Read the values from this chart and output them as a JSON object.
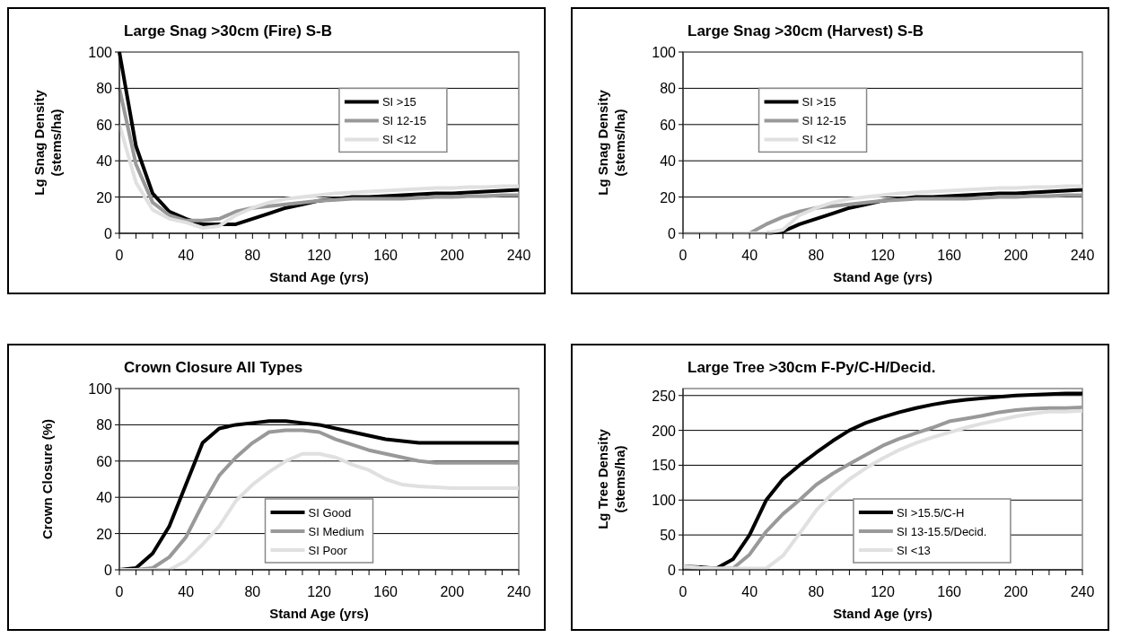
{
  "chart_data": [
    {
      "type": "line",
      "title": "Large Snag >30cm (Fire)  S-B",
      "xlabel": "Stand Age (yrs)",
      "ylabel": "Lg Snag Density (stems/ha)",
      "x": [
        0,
        10,
        20,
        30,
        40,
        50,
        60,
        70,
        80,
        90,
        100,
        110,
        120,
        130,
        140,
        150,
        160,
        170,
        180,
        190,
        200,
        210,
        220,
        230,
        240
      ],
      "xlim": [
        0,
        240
      ],
      "xticks": [
        0,
        {
          "value": 10,
          "label": null
        },
        {
          "value": 20,
          "label": null
        },
        {
          "value": 30,
          "label": null
        },
        40,
        {
          "value": 50,
          "label": null
        },
        {
          "value": 60,
          "label": null
        },
        {
          "value": 70,
          "label": null
        },
        80,
        {
          "value": 90,
          "label": null
        },
        {
          "value": 100,
          "label": null
        },
        {
          "value": 110,
          "label": null
        },
        120,
        {
          "value": 130,
          "label": null
        },
        {
          "value": 140,
          "label": null
        },
        {
          "value": 150,
          "label": null
        },
        160,
        {
          "value": 170,
          "label": null
        },
        {
          "value": 180,
          "label": null
        },
        {
          "value": 190,
          "label": null
        },
        200,
        {
          "value": 210,
          "label": null
        },
        {
          "value": 220,
          "label": null
        },
        {
          "value": 230,
          "label": null
        },
        240
      ],
      "ylim": [
        0,
        100
      ],
      "yticks": [
        0,
        20,
        40,
        60,
        80,
        100
      ],
      "grid": "y",
      "legend": "top right",
      "line_style": "solid",
      "series": [
        {
          "name": "SI >15",
          "color": "#000000",
          "values": [
            100,
            48,
            22,
            12,
            8,
            5,
            5,
            5,
            8,
            11,
            14,
            16,
            18,
            19,
            20,
            20,
            20.5,
            21,
            21.5,
            22,
            22,
            22.5,
            23,
            23.5,
            24
          ]
        },
        {
          "name": "SI 12-15",
          "color": "#999999",
          "values": [
            80,
            38,
            17,
            10,
            7,
            7,
            8,
            12,
            14,
            15,
            16,
            17,
            18,
            18.5,
            19,
            19,
            19,
            19,
            19.5,
            20,
            20,
            20.5,
            20.5,
            21,
            21
          ]
        },
        {
          "name": "SI <12",
          "color": "#e0e0e0",
          "values": [
            60,
            28,
            13,
            8,
            6,
            3,
            4,
            10,
            14,
            17,
            19,
            20,
            21,
            22,
            22.5,
            23,
            23.5,
            24,
            24.5,
            25,
            25,
            25.5,
            25.5,
            26,
            26
          ]
        }
      ]
    },
    {
      "type": "line",
      "title": "Large Snag >30cm (Harvest)  S-B",
      "xlabel": "Stand Age (yrs)",
      "ylabel": "Lg Snag Density (stems/ha)",
      "x": [
        0,
        10,
        20,
        30,
        40,
        50,
        60,
        70,
        80,
        90,
        100,
        110,
        120,
        130,
        140,
        150,
        160,
        170,
        180,
        190,
        200,
        210,
        220,
        230,
        240
      ],
      "xlim": [
        0,
        240
      ],
      "xticks": [
        0,
        {
          "value": 10,
          "label": null
        },
        {
          "value": 20,
          "label": null
        },
        {
          "value": 30,
          "label": null
        },
        40,
        {
          "value": 50,
          "label": null
        },
        {
          "value": 60,
          "label": null
        },
        {
          "value": 70,
          "label": null
        },
        80,
        {
          "value": 90,
          "label": null
        },
        {
          "value": 100,
          "label": null
        },
        {
          "value": 110,
          "label": null
        },
        120,
        {
          "value": 130,
          "label": null
        },
        {
          "value": 140,
          "label": null
        },
        {
          "value": 150,
          "label": null
        },
        160,
        {
          "value": 170,
          "label": null
        },
        {
          "value": 180,
          "label": null
        },
        {
          "value": 190,
          "label": null
        },
        200,
        {
          "value": 210,
          "label": null
        },
        {
          "value": 220,
          "label": null
        },
        {
          "value": 230,
          "label": null
        },
        240
      ],
      "ylim": [
        0,
        100
      ],
      "yticks": [
        0,
        20,
        40,
        60,
        80,
        100
      ],
      "grid": "y",
      "legend": "top left",
      "line_style": "solid",
      "series": [
        {
          "name": "SI >15",
          "color": "#000000",
          "values": [
            0,
            0,
            0,
            0,
            0,
            0,
            1,
            5,
            8,
            11,
            14,
            16,
            18,
            19,
            20,
            20,
            20.5,
            21,
            21.5,
            22,
            22,
            22.5,
            23,
            23.5,
            24
          ]
        },
        {
          "name": "SI 12-15",
          "color": "#999999",
          "values": [
            0,
            0,
            0,
            0,
            0,
            5,
            9,
            12,
            14,
            15,
            16,
            17,
            18,
            18.5,
            19,
            19,
            19,
            19,
            19.5,
            20,
            20,
            20.5,
            20.5,
            21,
            21
          ]
        },
        {
          "name": "SI <12",
          "color": "#e0e0e0",
          "values": [
            0,
            0,
            0,
            0,
            0,
            0,
            2,
            10,
            14,
            17,
            19,
            20,
            21,
            22,
            22.5,
            23,
            23.5,
            24,
            24.5,
            25,
            25,
            25.5,
            25.5,
            26,
            26
          ]
        }
      ]
    },
    {
      "type": "line",
      "title": "Crown Closure    All Types",
      "xlabel": "Stand Age (yrs)",
      "ylabel": "Crown Closure (%)",
      "x": [
        0,
        10,
        20,
        30,
        40,
        50,
        60,
        70,
        80,
        90,
        100,
        110,
        120,
        130,
        140,
        150,
        160,
        170,
        180,
        190,
        200,
        210,
        220,
        230,
        240
      ],
      "xlim": [
        0,
        240
      ],
      "xticks": [
        0,
        {
          "value": 10,
          "label": null
        },
        {
          "value": 20,
          "label": null
        },
        {
          "value": 30,
          "label": null
        },
        40,
        {
          "value": 50,
          "label": null
        },
        {
          "value": 60,
          "label": null
        },
        {
          "value": 70,
          "label": null
        },
        80,
        {
          "value": 90,
          "label": null
        },
        {
          "value": 100,
          "label": null
        },
        {
          "value": 110,
          "label": null
        },
        120,
        {
          "value": 130,
          "label": null
        },
        {
          "value": 140,
          "label": null
        },
        {
          "value": 150,
          "label": null
        },
        160,
        {
          "value": 170,
          "label": null
        },
        {
          "value": 180,
          "label": null
        },
        {
          "value": 190,
          "label": null
        },
        200,
        {
          "value": 210,
          "label": null
        },
        {
          "value": 220,
          "label": null
        },
        {
          "value": 230,
          "label": null
        },
        240
      ],
      "ylim": [
        0,
        100
      ],
      "yticks": [
        0,
        20,
        40,
        60,
        80,
        100
      ],
      "grid": "y",
      "legend": "bottom",
      "line_style": "solid",
      "series": [
        {
          "name": "SI Good",
          "color": "#000000",
          "values": [
            0,
            1,
            9,
            24,
            47,
            70,
            78,
            80,
            81,
            82,
            82,
            81,
            80,
            78,
            76,
            74,
            72,
            71,
            70,
            70,
            70,
            70,
            70,
            70,
            70
          ]
        },
        {
          "name": "SI Medium",
          "color": "#999999",
          "values": [
            0,
            0,
            1,
            7,
            18,
            36,
            52,
            62,
            70,
            76,
            77,
            77,
            76,
            72,
            69,
            66,
            64,
            62,
            60,
            59,
            59,
            59,
            59,
            59,
            59
          ]
        },
        {
          "name": "SI Poor",
          "color": "#e0e0e0",
          "values": [
            0,
            0,
            0,
            0,
            5,
            14,
            24,
            38,
            47,
            54,
            60,
            64,
            64,
            62,
            58,
            55,
            50,
            47,
            46,
            45.5,
            45,
            45,
            45,
            45,
            45
          ]
        }
      ]
    },
    {
      "type": "line",
      "title": "Large Tree >30cm  F-Py/C-H/Decid.",
      "xlabel": "Stand Age (yrs)",
      "ylabel": "Lg Tree Density (stems/ha)",
      "x": [
        0,
        10,
        20,
        30,
        40,
        50,
        60,
        70,
        80,
        90,
        100,
        110,
        120,
        130,
        140,
        150,
        160,
        170,
        180,
        190,
        200,
        210,
        220,
        230,
        240
      ],
      "xlim": [
        0,
        240
      ],
      "xticks": [
        0,
        {
          "value": 10,
          "label": null
        },
        {
          "value": 20,
          "label": null
        },
        {
          "value": 30,
          "label": null
        },
        40,
        {
          "value": 50,
          "label": null
        },
        {
          "value": 60,
          "label": null
        },
        {
          "value": 70,
          "label": null
        },
        80,
        {
          "value": 90,
          "label": null
        },
        {
          "value": 100,
          "label": null
        },
        {
          "value": 110,
          "label": null
        },
        120,
        {
          "value": 130,
          "label": null
        },
        {
          "value": 140,
          "label": null
        },
        {
          "value": 150,
          "label": null
        },
        160,
        {
          "value": 170,
          "label": null
        },
        {
          "value": 180,
          "label": null
        },
        {
          "value": 190,
          "label": null
        },
        200,
        {
          "value": 210,
          "label": null
        },
        {
          "value": 220,
          "label": null
        },
        {
          "value": 230,
          "label": null
        },
        240
      ],
      "ylim": [
        0,
        260
      ],
      "yticks": [
        0,
        50,
        100,
        150,
        200,
        250
      ],
      "grid": "y",
      "legend": "bottom right",
      "line_style": "solid",
      "series": [
        {
          "name": "SI >15.5/C-H",
          "color": "#000000",
          "values": [
            5,
            4,
            2,
            15,
            50,
            100,
            130,
            150,
            168,
            185,
            200,
            211,
            219,
            226,
            232,
            237,
            241,
            244,
            246,
            248,
            250,
            251,
            252,
            253,
            253
          ]
        },
        {
          "name": "SI 13-15.5/Decid.",
          "color": "#999999",
          "values": [
            5,
            3,
            2,
            2,
            22,
            55,
            80,
            100,
            122,
            138,
            152,
            165,
            178,
            188,
            196,
            204,
            213,
            217,
            221,
            226,
            229,
            231,
            232,
            232,
            233
          ]
        },
        {
          "name": "SI <13",
          "color": "#e0e0e0",
          "values": [
            5,
            3,
            2,
            2,
            2,
            2,
            20,
            52,
            85,
            110,
            130,
            146,
            160,
            172,
            182,
            190,
            197,
            204,
            210,
            215,
            220,
            224,
            227,
            227,
            228
          ]
        }
      ]
    }
  ]
}
